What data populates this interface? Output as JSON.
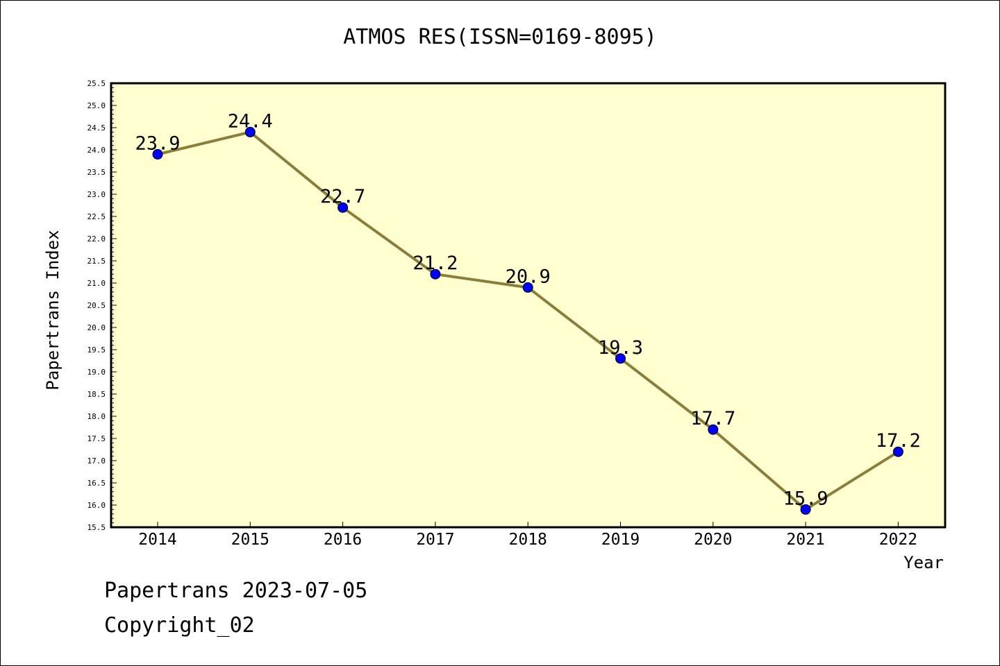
{
  "chart_data": {
    "type": "line",
    "title": "ATMOS RES(ISSN=0169-8095)",
    "xlabel": "Year",
    "ylabel": "Papertrans Index",
    "categories": [
      "2014",
      "2015",
      "2016",
      "2017",
      "2018",
      "2019",
      "2020",
      "2021",
      "2022"
    ],
    "series": [
      {
        "values": [
          23.9,
          24.4,
          22.7,
          21.2,
          20.9,
          19.3,
          17.7,
          15.9,
          17.2
        ]
      }
    ],
    "data_labels": [
      "23.9",
      "24.4",
      "22.7",
      "21.2",
      "20.9",
      "19.3",
      "17.7",
      "15.9",
      "17.2"
    ],
    "ylim": [
      15.5,
      25.5
    ],
    "yticks": [
      "15.5",
      "16.0",
      "16.5",
      "17.0",
      "17.5",
      "18.0",
      "18.5",
      "19.0",
      "19.5",
      "20.0",
      "20.5",
      "21.0",
      "21.5",
      "22.0",
      "22.5",
      "23.0",
      "23.5",
      "24.0",
      "24.5",
      "25.0",
      "25.5"
    ],
    "grid": false,
    "colors": {
      "plot_background": "#ffffd0",
      "line": "#8b7d3a",
      "marker": "#0000ff"
    }
  },
  "footer": {
    "line1": "Papertrans 2023-07-05",
    "line2": "Copyright_02"
  }
}
